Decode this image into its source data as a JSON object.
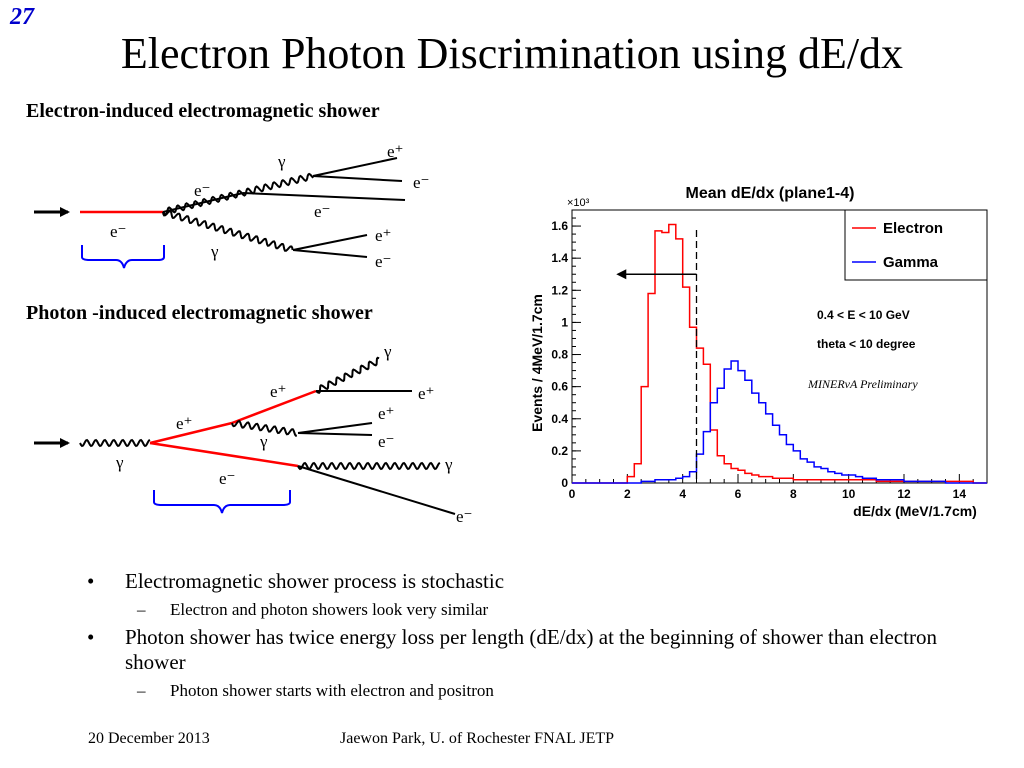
{
  "slide": {
    "number": "27",
    "title": "Electron Photon Discrimination using dE/dx",
    "footer_date": "20 December 2013",
    "footer_center": "Jaewon Park, U. of Rochester  FNAL JETP"
  },
  "diagram_electron": {
    "heading": "Electron-induced electromagnetic shower",
    "labels": {
      "e_in": "e⁻",
      "e_upper": "e⁻",
      "gamma_upper": "γ",
      "eplus_top": "e⁺",
      "eminus_top": "e⁻",
      "e_mid": "e⁻",
      "gamma_lower": "γ",
      "eplus_lower": "e⁺",
      "eminus_lower": "e⁻"
    }
  },
  "diagram_photon": {
    "heading": "Photon -induced electromagnetic shower",
    "labels": {
      "gamma_in": "γ",
      "eplus_1": "e⁺",
      "eminus_1": "e⁻",
      "eplus_2": "e⁺",
      "gamma_top": "γ",
      "eplus_3": "e⁺",
      "gamma_mid": "γ",
      "eplus_4": "e⁺",
      "eminus_4": "e⁻",
      "gamma_right": "γ",
      "eminus_bottom": "e⁻"
    }
  },
  "chart_data": {
    "type": "histogram",
    "title": "Mean dE/dx (plane1-4)",
    "xlabel": "dE/dx (MeV/1.7cm)",
    "ylabel": "Events / 4MeV/1.7cm",
    "y_multiplier": "×10³",
    "xlim": [
      0,
      15
    ],
    "ylim": [
      0,
      1.7
    ],
    "bin_width": 0.25,
    "x_start": 0,
    "x_ticks": [
      "0",
      "2",
      "4",
      "6",
      "8",
      "10",
      "12",
      "14"
    ],
    "y_ticks": [
      "0",
      "0.2",
      "0.4",
      "0.6",
      "0.8",
      "1",
      "1.2",
      "1.4",
      "1.6"
    ],
    "cut_value": 4.5,
    "annotations": [
      "0.4 < E < 10 GeV",
      "theta < 10 degree",
      "MINERvA Preliminary"
    ],
    "legend_position": "top-right",
    "series": [
      {
        "name": "Electron",
        "color": "#ff0000",
        "values": [
          0,
          0,
          0,
          0,
          0,
          0,
          0,
          0,
          0.04,
          0.12,
          0.6,
          1.18,
          1.57,
          1.56,
          1.61,
          1.52,
          1.22,
          0.97,
          0.84,
          0.74,
          0.33,
          0.17,
          0.12,
          0.09,
          0.08,
          0.06,
          0.05,
          0.04,
          0.04,
          0.03,
          0.03,
          0.03,
          0.02,
          0.02,
          0.02,
          0.02,
          0.02,
          0.02,
          0.02,
          0.02,
          0.02,
          0.02,
          0.02,
          0.02,
          0.01,
          0.01,
          0.01,
          0.01,
          0.01,
          0.01,
          0.01,
          0.01,
          0.01,
          0.01,
          0.01,
          0.01,
          0.01,
          0.01,
          0,
          0
        ]
      },
      {
        "name": "Gamma",
        "color": "#0000ff",
        "values": [
          0,
          0,
          0,
          0,
          0,
          0,
          0,
          0,
          0,
          0,
          0.01,
          0.01,
          0.02,
          0.02,
          0.02,
          0.03,
          0.04,
          0.07,
          0.18,
          0.32,
          0.5,
          0.59,
          0.71,
          0.76,
          0.7,
          0.64,
          0.56,
          0.5,
          0.43,
          0.36,
          0.3,
          0.24,
          0.2,
          0.15,
          0.13,
          0.1,
          0.09,
          0.07,
          0.06,
          0.05,
          0.05,
          0.04,
          0.03,
          0.03,
          0.02,
          0.02,
          0.02,
          0.02,
          0.01,
          0.01,
          0.01,
          0.01,
          0.01,
          0.01,
          0,
          0,
          0,
          0,
          0,
          0
        ]
      }
    ]
  },
  "bullets": [
    {
      "level": 1,
      "text": "Electromagnetic shower process is stochastic"
    },
    {
      "level": 2,
      "text": "Electron and photon showers look very similar"
    },
    {
      "level": 1,
      "text": "Photon shower has twice energy loss per length (dE/dx) at the beginning of shower than electron shower"
    },
    {
      "level": 2,
      "text": "Photon shower starts with electron and positron"
    }
  ]
}
